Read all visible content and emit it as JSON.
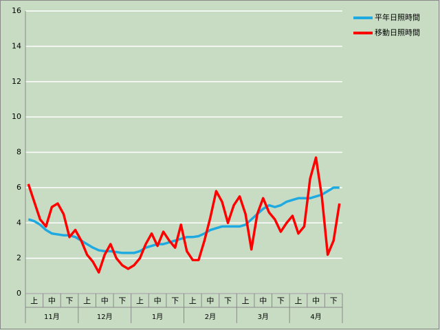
{
  "chart_data": {
    "type": "line",
    "categories": [
      null,
      "上",
      null,
      null,
      "中",
      null,
      null,
      "下",
      null,
      null,
      "上",
      null,
      null,
      "中",
      null,
      null,
      "下",
      null,
      null,
      "上",
      null,
      null,
      "中",
      null,
      null,
      "下",
      null,
      null,
      "上",
      null,
      null,
      "中",
      null,
      null,
      "下",
      null,
      null,
      "上",
      null,
      null,
      "中",
      null,
      null,
      "下",
      null,
      null,
      "上",
      null,
      null,
      "中",
      null,
      null,
      "下",
      null
    ],
    "months": [
      "11月",
      "12月",
      "1月",
      "2月",
      "3月",
      "4月"
    ],
    "series": [
      {
        "name": "平年日照時間",
        "color": "#1fa9e1",
        "values": [
          4.2,
          4.1,
          3.9,
          3.6,
          3.4,
          3.35,
          3.3,
          3.3,
          3.2,
          3.0,
          2.8,
          2.6,
          2.45,
          2.4,
          2.4,
          2.35,
          2.3,
          2.3,
          2.3,
          2.4,
          2.6,
          2.7,
          2.8,
          2.8,
          2.9,
          3.0,
          3.1,
          3.2,
          3.2,
          3.25,
          3.4,
          3.6,
          3.7,
          3.8,
          3.8,
          3.8,
          3.8,
          3.9,
          4.2,
          4.5,
          4.8,
          5.0,
          4.9,
          5.0,
          5.2,
          5.3,
          5.4,
          5.4,
          5.4,
          5.5,
          5.6,
          5.8,
          6.0,
          6.0
        ]
      },
      {
        "name": "移動日照時間",
        "color": "#ff0000",
        "values": [
          6.2,
          5.2,
          4.2,
          3.8,
          4.9,
          5.1,
          4.5,
          3.2,
          3.6,
          3.0,
          2.2,
          1.8,
          1.2,
          2.2,
          2.8,
          2.0,
          1.6,
          1.4,
          1.6,
          2.0,
          2.8,
          3.4,
          2.7,
          3.5,
          3.0,
          2.6,
          3.9,
          2.4,
          1.9,
          1.9,
          3.0,
          4.3,
          5.8,
          5.2,
          4.0,
          5.0,
          5.5,
          4.5,
          2.5,
          4.5,
          5.4,
          4.6,
          4.2,
          3.5,
          4.0,
          4.4,
          3.4,
          3.8,
          6.5,
          7.7,
          5.5,
          2.2,
          3.0,
          5.1
        ]
      }
    ],
    "ylim": [
      0,
      16
    ],
    "yticks": [
      0,
      2,
      4,
      6,
      8,
      10,
      12,
      14,
      16
    ],
    "grid": true
  }
}
